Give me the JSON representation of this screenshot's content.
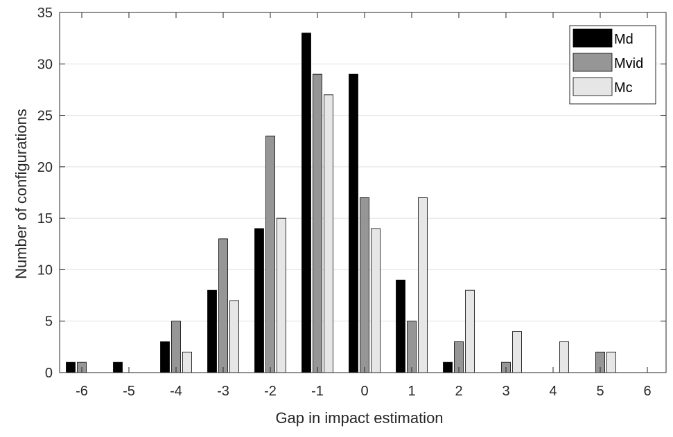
{
  "chart_data": {
    "type": "bar",
    "categories": [
      "-6",
      "-5",
      "-4",
      "-3",
      "-2",
      "-1",
      "0",
      "1",
      "2",
      "3",
      "4",
      "5",
      "6"
    ],
    "series": [
      {
        "name": "Md",
        "color": "#000000",
        "values": [
          1,
          1,
          3,
          8,
          14,
          33,
          29,
          9,
          1,
          0,
          0,
          0,
          0
        ]
      },
      {
        "name": "Mvid",
        "color": "#969696",
        "values": [
          1,
          0,
          5,
          13,
          23,
          29,
          17,
          5,
          3,
          1,
          0,
          2,
          0
        ]
      },
      {
        "name": "Mc",
        "color": "#e6e6e6",
        "values": [
          0,
          0,
          2,
          7,
          15,
          27,
          14,
          17,
          8,
          4,
          3,
          2,
          0
        ]
      }
    ],
    "xlabel": "Gap in impact estimation",
    "ylabel": "Number of configurations",
    "ylim": [
      0,
      35
    ],
    "yticks": [
      "0",
      "5",
      "10",
      "15",
      "20",
      "25",
      "30",
      "35"
    ],
    "grid": "horizontal",
    "legend_position": "top-right"
  }
}
